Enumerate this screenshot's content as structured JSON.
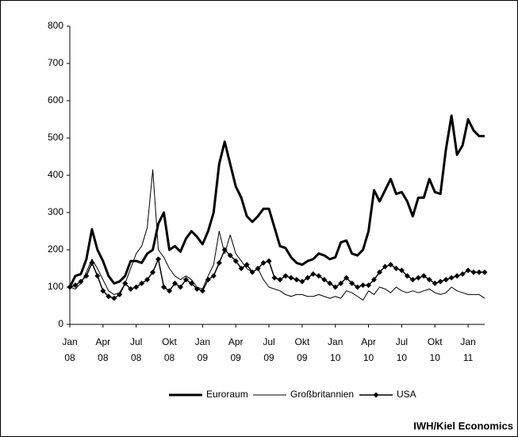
{
  "chart_data": {
    "type": "line",
    "x": [
      0,
      0.5,
      1,
      1.5,
      2,
      2.5,
      3,
      3.5,
      4,
      4.5,
      5,
      5.5,
      6,
      6.5,
      7,
      7.5,
      8,
      8.5,
      9,
      9.5,
      10,
      10.5,
      11,
      11.5,
      12,
      12.5,
      13,
      13.5,
      14,
      14.5,
      15,
      15.5,
      16,
      16.5,
      17,
      17.5,
      18,
      18.5,
      19,
      19.5,
      20,
      20.5,
      21,
      21.5,
      22,
      22.5,
      23,
      23.5,
      24,
      24.5,
      25,
      25.5,
      26,
      26.5,
      27,
      27.5,
      28,
      28.5,
      29,
      29.5,
      30,
      30.5,
      31,
      31.5,
      32,
      32.5,
      33,
      33.5,
      34,
      34.5,
      35,
      35.5,
      36,
      36.5,
      37,
      37.5
    ],
    "series": [
      {
        "name": "Euroraum",
        "color": "#000000",
        "values": [
          100,
          130,
          135,
          175,
          255,
          200,
          170,
          130,
          110,
          115,
          130,
          170,
          170,
          165,
          190,
          200,
          270,
          300,
          200,
          210,
          195,
          230,
          250,
          235,
          215,
          250,
          300,
          430,
          490,
          430,
          370,
          340,
          290,
          275,
          290,
          310,
          310,
          260,
          210,
          205,
          180,
          165,
          160,
          170,
          175,
          190,
          185,
          175,
          180,
          220,
          225,
          190,
          185,
          200,
          250,
          360,
          330,
          360,
          390,
          350,
          355,
          330,
          290,
          340,
          340,
          390,
          355,
          350,
          470,
          560,
          455,
          480,
          550,
          520,
          505,
          505
        ]
      },
      {
        "name": "Großbritannien",
        "color": "#000000",
        "values": [
          100,
          95,
          110,
          140,
          175,
          150,
          120,
          90,
          80,
          85,
          110,
          150,
          190,
          210,
          260,
          415,
          200,
          180,
          150,
          130,
          120,
          130,
          120,
          100,
          95,
          130,
          160,
          250,
          190,
          240,
          190,
          170,
          150,
          140,
          150,
          120,
          100,
          95,
          90,
          80,
          75,
          80,
          80,
          75,
          75,
          80,
          75,
          70,
          75,
          70,
          90,
          85,
          75,
          65,
          90,
          80,
          100,
          95,
          85,
          100,
          90,
          85,
          90,
          85,
          90,
          95,
          85,
          80,
          85,
          100,
          90,
          85,
          80,
          80,
          80,
          70
        ]
      },
      {
        "name": "USA",
        "color": "#000000",
        "values": [
          100,
          105,
          115,
          130,
          165,
          130,
          90,
          75,
          70,
          80,
          110,
          95,
          100,
          110,
          120,
          140,
          175,
          100,
          90,
          110,
          100,
          120,
          110,
          95,
          90,
          120,
          130,
          165,
          200,
          185,
          170,
          150,
          160,
          140,
          150,
          165,
          170,
          125,
          120,
          130,
          125,
          120,
          115,
          125,
          135,
          130,
          120,
          110,
          100,
          110,
          125,
          110,
          100,
          105,
          105,
          120,
          140,
          155,
          160,
          150,
          145,
          130,
          120,
          125,
          130,
          120,
          110,
          115,
          120,
          125,
          130,
          135,
          145,
          140,
          140,
          140
        ]
      }
    ],
    "xlim": [
      0,
      37.5
    ],
    "xticks": [
      {
        "value": 0,
        "label": "Jan\n08"
      },
      {
        "value": 3,
        "label": "Apr\n08"
      },
      {
        "value": 6,
        "label": "Jul\n08"
      },
      {
        "value": 9,
        "label": "Okt\n08"
      },
      {
        "value": 12,
        "label": "Jan\n09"
      },
      {
        "value": 15,
        "label": "Apr\n09"
      },
      {
        "value": 18,
        "label": "Jul\n09"
      },
      {
        "value": 21,
        "label": "Okt\n09"
      },
      {
        "value": 24,
        "label": "Jan\n10"
      },
      {
        "value": 27,
        "label": "Apr\n10"
      },
      {
        "value": 30,
        "label": "Jul\n10"
      },
      {
        "value": 33,
        "label": "Okt\n10"
      },
      {
        "value": 36,
        "label": "Jan\n11"
      }
    ],
    "ylim": [
      0,
      800
    ],
    "yticks": [
      0,
      100,
      200,
      300,
      400,
      500,
      600,
      700,
      800
    ],
    "grid": false,
    "source": "IWH/Kiel Economics"
  }
}
